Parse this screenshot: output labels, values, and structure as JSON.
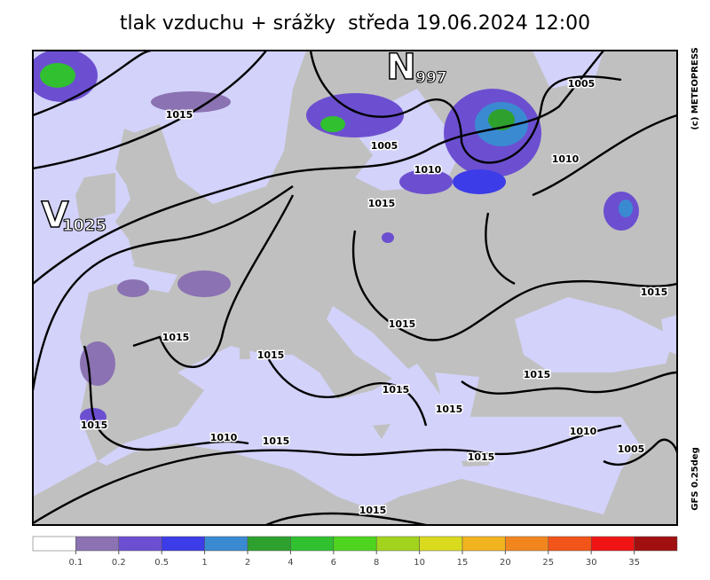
{
  "title": "tlak vzduchu + srážky  středa 19.06.2024 12:00",
  "pressure_systems": [
    {
      "symbol": "N",
      "value": 997
    },
    {
      "symbol": "V",
      "value": 1025
    }
  ],
  "isobar_labels": [
    1015,
    1005,
    1010,
    1015,
    1005,
    1010,
    1015,
    1015,
    1015,
    1015,
    1015,
    1015,
    1015,
    1015,
    1010,
    1015,
    1010,
    1015,
    1005,
    1015
  ],
  "credit": "(c) METEOPRESS",
  "model": "GFS 0.25deg",
  "legend": {
    "ticks": [
      0.1,
      0.2,
      0.5,
      1,
      2,
      4,
      6,
      8,
      10,
      15,
      20,
      25,
      30,
      35
    ],
    "colors": [
      "#ffffff",
      "#8b72b2",
      "#6c4fd0",
      "#3c3ce8",
      "#3a8ad2",
      "#2ea02e",
      "#30c030",
      "#4ed41e",
      "#a2d41e",
      "#dada1e",
      "#f2b41e",
      "#f2861e",
      "#f2541a",
      "#f01414",
      "#a01010"
    ]
  }
}
